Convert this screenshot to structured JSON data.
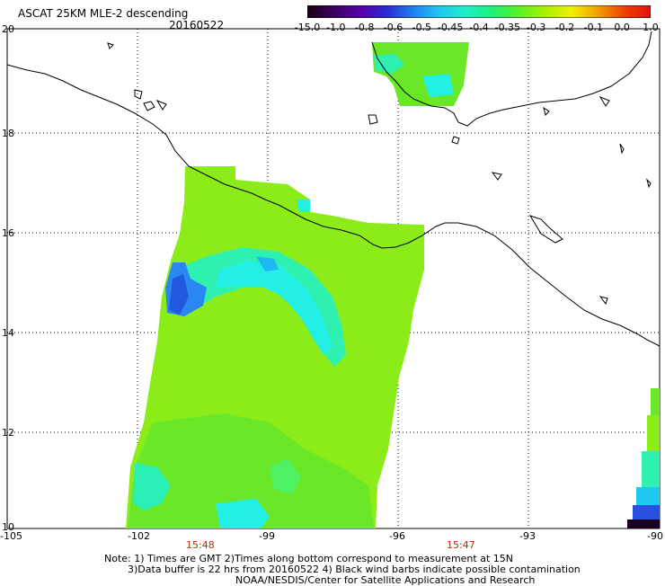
{
  "header": {
    "title": "ASCAT 25KM MLE-2 descending",
    "date": "20160522"
  },
  "colorbar": {
    "labels": [
      "-15.0",
      "-1.0",
      "-0.8",
      "-0.6",
      "-0.5",
      "-0.45",
      "-0.4",
      "-0.35",
      "-0.3",
      "-0.2",
      "-0.1",
      "0.0",
      "1.0"
    ],
    "colors": [
      "#1a0010",
      "#3a0060",
      "#5500aa",
      "#2a2ad0",
      "#1f7ef0",
      "#1ec8f0",
      "#1ef0c8",
      "#1ef07a",
      "#5af028",
      "#a8f000",
      "#f0f000",
      "#f0a000",
      "#f04000",
      "#e01010"
    ]
  },
  "axes": {
    "lat_labels": [
      "20",
      "18",
      "16",
      "14",
      "12",
      "10"
    ],
    "lon_labels": [
      "-105",
      "-102",
      "-99",
      "-96",
      "-93",
      "-90"
    ]
  },
  "timestamps": [
    "15:48",
    "15:47"
  ],
  "notes": {
    "line1": "Note: 1) Times are GMT 2)Times along bottom correspond to measurement at 15N",
    "line2": "3)Data buffer is 22 hrs from 20160522 4) Black wind barbs indicate possible contamination",
    "line3": "NOAA/NESDIS/Center for Satellite Applications and Research"
  }
}
